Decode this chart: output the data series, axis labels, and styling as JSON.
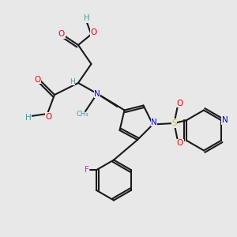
{
  "bg_color": "#e8e8e8",
  "bond_color": "#1a1a1a",
  "bond_lw": 1.5,
  "atom_colors": {
    "C": "#4a9a9a",
    "H": "#4a9a9a",
    "N": "#0000ff",
    "O": "#ff0000",
    "F": "#ff00ff",
    "S": "#cccc00"
  },
  "font_size": 7.5,
  "font_size_small": 6.5
}
